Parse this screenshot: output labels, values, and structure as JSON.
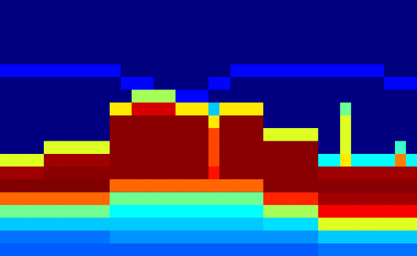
{
  "chart_data": {
    "type": "heatmap",
    "tick_labels": false,
    "grid": false,
    "cells": [
      [
        0,
        0,
        0,
        0,
        0,
        0,
        0,
        0,
        0,
        0,
        0,
        0,
        0,
        0,
        0,
        0,
        0,
        0,
        0,
        0,
        0,
        0,
        0,
        0,
        0,
        0,
        0,
        0,
        0,
        0,
        0,
        0,
        0,
        0,
        0,
        0,
        0,
        0
      ],
      [
        0,
        0,
        0,
        0,
        0,
        0,
        0,
        0,
        0,
        0,
        0,
        0,
        0,
        0,
        0,
        0,
        0,
        0,
        0,
        0,
        0,
        0,
        0,
        0,
        0,
        0,
        0,
        0,
        0,
        0,
        0,
        0,
        0,
        0,
        0,
        0,
        0,
        0
      ],
      [
        0,
        0,
        0,
        0,
        0,
        0,
        0,
        0,
        0,
        0,
        0,
        0,
        0,
        0,
        0,
        0,
        0,
        0,
        0,
        0,
        0,
        0,
        0,
        0,
        0,
        0,
        0,
        0,
        0,
        0,
        0,
        0,
        0,
        0,
        0,
        0,
        0,
        0
      ],
      [
        0,
        0,
        0,
        0,
        0,
        0,
        0,
        0,
        0,
        0,
        0,
        0,
        0,
        0,
        0,
        0,
        0,
        0,
        0,
        0,
        0,
        0,
        0,
        0,
        0,
        0,
        0,
        0,
        0,
        0,
        0,
        0,
        0,
        0,
        0,
        0,
        0,
        0
      ],
      [
        0,
        0,
        0,
        0,
        0,
        0,
        0,
        0,
        0,
        0,
        0,
        0,
        0,
        0,
        0,
        0,
        0,
        0,
        0,
        0,
        0,
        0,
        0,
        0,
        0,
        0,
        0,
        0,
        0,
        0,
        0,
        0,
        0,
        0,
        0,
        0,
        0,
        0
      ],
      [
        0.12,
        0.12,
        0.12,
        0.12,
        0.12,
        0.12,
        0.12,
        0.12,
        0.12,
        0.12,
        0.12,
        0,
        0,
        0,
        0,
        0,
        0,
        0,
        0,
        0,
        0,
        0.12,
        0.12,
        0.12,
        0.12,
        0.12,
        0.12,
        0.12,
        0.12,
        0.12,
        0.12,
        0.12,
        0.12,
        0.12,
        0.12,
        0,
        0,
        0
      ],
      [
        0,
        0,
        0,
        0,
        0,
        0,
        0,
        0,
        0,
        0,
        0,
        0.12,
        0.12,
        0.12,
        0,
        0,
        0,
        0,
        0,
        0.12,
        0.12,
        0,
        0,
        0,
        0,
        0,
        0,
        0,
        0,
        0,
        0,
        0,
        0,
        0,
        0,
        0.12,
        0.12,
        0.12
      ],
      [
        0,
        0,
        0,
        0,
        0,
        0,
        0,
        0,
        0,
        0,
        0,
        0,
        0.5,
        0.5,
        0.5,
        0.5,
        0.12,
        0.12,
        0.12,
        0,
        0,
        0,
        0,
        0,
        0,
        0,
        0,
        0,
        0,
        0,
        0,
        0,
        0,
        0,
        0,
        0,
        0,
        0
      ],
      [
        0,
        0,
        0,
        0,
        0,
        0,
        0,
        0,
        0,
        0,
        0.6,
        0.6,
        0.85,
        0.85,
        0.85,
        0.85,
        0.6,
        0.6,
        0.6,
        0.3,
        0.6,
        0.6,
        0.6,
        0.6,
        0,
        0,
        0,
        0,
        0,
        0,
        0,
        0.45,
        0,
        0,
        0,
        0,
        0,
        0
      ],
      [
        0,
        0,
        0,
        0,
        0,
        0,
        0,
        0,
        0,
        0,
        0.92,
        0.92,
        0.92,
        0.92,
        0.92,
        0.92,
        0.92,
        0.92,
        0.92,
        0.6,
        0.92,
        0.92,
        0.92,
        0.92,
        0,
        0,
        0,
        0,
        0,
        0,
        0,
        0.55,
        0,
        0,
        0,
        0,
        0,
        0
      ],
      [
        0,
        0,
        0,
        0,
        0,
        0,
        0,
        0,
        0,
        0,
        0.92,
        0.92,
        0.92,
        0.92,
        0.92,
        0.92,
        0.92,
        0.92,
        0.92,
        0.75,
        0.92,
        0.92,
        0.92,
        0.92,
        0.55,
        0.55,
        0.55,
        0.55,
        0.55,
        0,
        0,
        0.55,
        0,
        0,
        0,
        0,
        0,
        0
      ],
      [
        0,
        0,
        0,
        0,
        0.55,
        0.55,
        0.55,
        0.55,
        0.55,
        0.55,
        0.92,
        0.92,
        0.92,
        0.92,
        0.92,
        0.92,
        0.92,
        0.92,
        0.92,
        0.75,
        0.92,
        0.92,
        0.92,
        0.92,
        0.92,
        0.92,
        0.92,
        0.92,
        0.92,
        0,
        0,
        0.55,
        0,
        0,
        0,
        0,
        0.4,
        0
      ],
      [
        0.55,
        0.55,
        0.55,
        0.55,
        0.9,
        0.9,
        0.9,
        0.9,
        0.9,
        0.9,
        0.92,
        0.92,
        0.92,
        0.92,
        0.92,
        0.92,
        0.92,
        0.92,
        0.92,
        0.75,
        0.92,
        0.92,
        0.92,
        0.92,
        0.92,
        0.92,
        0.92,
        0.92,
        0.92,
        0.35,
        0.35,
        0.6,
        0.35,
        0.35,
        0.35,
        0.35,
        0.7,
        0.35
      ],
      [
        0.9,
        0.9,
        0.9,
        0.9,
        0.92,
        0.92,
        0.92,
        0.92,
        0.92,
        0.92,
        0.92,
        0.92,
        0.92,
        0.92,
        0.92,
        0.92,
        0.92,
        0.92,
        0.92,
        0.8,
        0.92,
        0.92,
        0.92,
        0.92,
        0.92,
        0.92,
        0.92,
        0.92,
        0.92,
        0.9,
        0.9,
        0.9,
        0.9,
        0.9,
        0.9,
        0.9,
        0.9,
        0.9
      ],
      [
        0.93,
        0.93,
        0.93,
        0.93,
        0.93,
        0.93,
        0.93,
        0.93,
        0.93,
        0.93,
        0.72,
        0.72,
        0.72,
        0.72,
        0.72,
        0.72,
        0.72,
        0.72,
        0.72,
        0.72,
        0.72,
        0.72,
        0.72,
        0.72,
        0.92,
        0.92,
        0.92,
        0.92,
        0.92,
        0.92,
        0.92,
        0.92,
        0.92,
        0.92,
        0.92,
        0.92,
        0.92,
        0.92
      ],
      [
        0.72,
        0.72,
        0.72,
        0.72,
        0.72,
        0.72,
        0.72,
        0.72,
        0.72,
        0.72,
        0.45,
        0.45,
        0.45,
        0.45,
        0.45,
        0.45,
        0.45,
        0.45,
        0.45,
        0.45,
        0.45,
        0.45,
        0.45,
        0.45,
        0.78,
        0.78,
        0.78,
        0.78,
        0.78,
        0.9,
        0.9,
        0.9,
        0.9,
        0.9,
        0.9,
        0.9,
        0.9,
        0.9
      ],
      [
        0.45,
        0.45,
        0.45,
        0.45,
        0.45,
        0.45,
        0.45,
        0.45,
        0.45,
        0.45,
        0.35,
        0.35,
        0.35,
        0.35,
        0.35,
        0.35,
        0.35,
        0.35,
        0.35,
        0.35,
        0.35,
        0.35,
        0.35,
        0.35,
        0.5,
        0.5,
        0.5,
        0.5,
        0.5,
        0.82,
        0.82,
        0.82,
        0.82,
        0.82,
        0.82,
        0.82,
        0.82,
        0.82
      ],
      [
        0.3,
        0.3,
        0.3,
        0.3,
        0.3,
        0.3,
        0.3,
        0.3,
        0.3,
        0.3,
        0.3,
        0.3,
        0.3,
        0.3,
        0.3,
        0.3,
        0.3,
        0.3,
        0.3,
        0.3,
        0.3,
        0.3,
        0.3,
        0.3,
        0.32,
        0.32,
        0.32,
        0.32,
        0.32,
        0.55,
        0.55,
        0.55,
        0.55,
        0.55,
        0.55,
        0.55,
        0.55,
        0.55
      ],
      [
        0.22,
        0.22,
        0.22,
        0.22,
        0.22,
        0.22,
        0.22,
        0.22,
        0.22,
        0.22,
        0.25,
        0.25,
        0.25,
        0.25,
        0.25,
        0.25,
        0.25,
        0.25,
        0.25,
        0.25,
        0.25,
        0.25,
        0.25,
        0.25,
        0.25,
        0.25,
        0.25,
        0.25,
        0.25,
        0.3,
        0.3,
        0.3,
        0.3,
        0.3,
        0.3,
        0.3,
        0.3,
        0.3
      ],
      [
        0.2,
        0.2,
        0.2,
        0.2,
        0.2,
        0.2,
        0.2,
        0.2,
        0.2,
        0.2,
        0.2,
        0.2,
        0.2,
        0.2,
        0.2,
        0.2,
        0.2,
        0.2,
        0.2,
        0.2,
        0.2,
        0.2,
        0.2,
        0.2,
        0.2,
        0.2,
        0.2,
        0.2,
        0.2,
        0.22,
        0.22,
        0.22,
        0.22,
        0.22,
        0.22,
        0.22,
        0.22,
        0.22
      ]
    ]
  }
}
